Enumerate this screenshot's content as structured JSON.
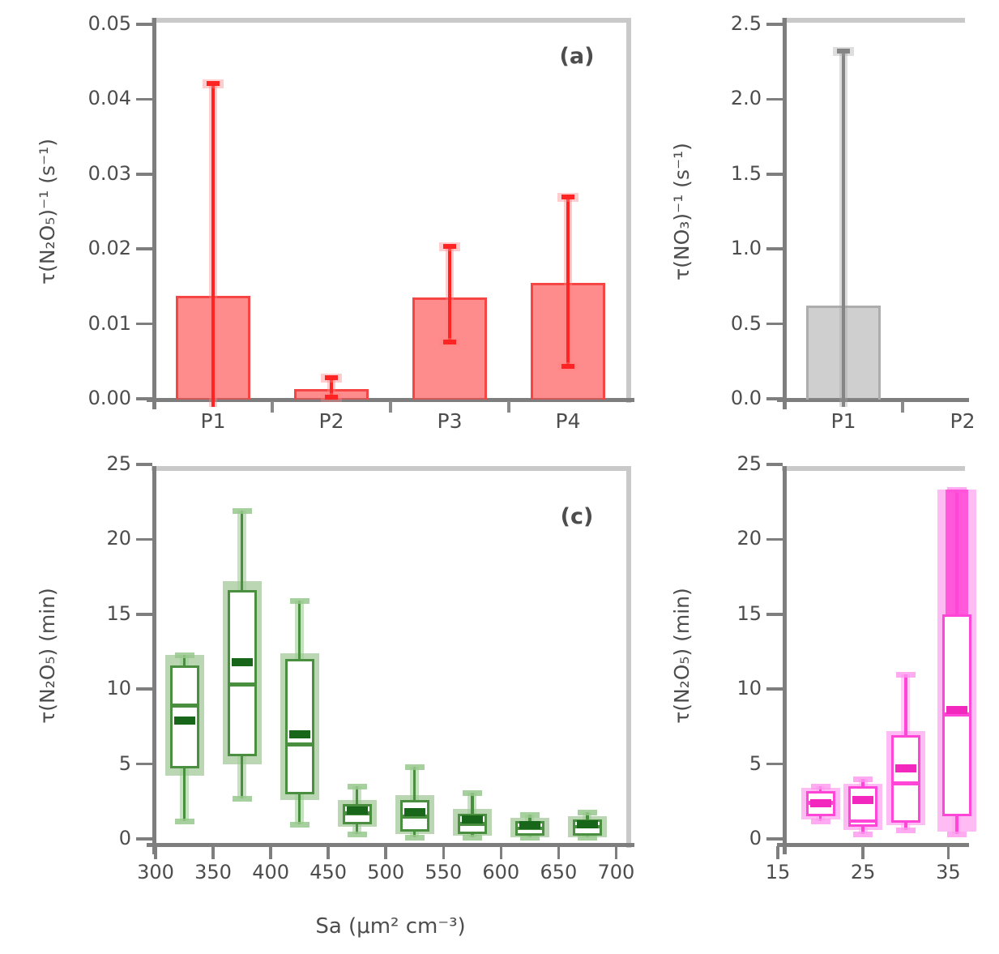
{
  "figure": {
    "description": "2x2 panel scientific figure, right column cropped at image edge",
    "background": "#ffffff",
    "axis_color": "#7e7e7e",
    "frame_color": "#c9c9c9",
    "text_color": "#4d4d4d"
  },
  "chart_data": [
    {
      "panel": "a",
      "type": "bar",
      "position": "top-left",
      "tag": "(a)",
      "ylabel": "τ(N₂O₅)⁻¹ (s⁻¹)",
      "ylim": [
        0,
        0.05
      ],
      "yticks": [
        "0.00",
        "0.01",
        "0.02",
        "0.03",
        "0.04",
        "0.05"
      ],
      "categories": [
        "P1",
        "P2",
        "P3",
        "P4"
      ],
      "values": [
        0.0137,
        0.0013,
        0.0135,
        0.0155
      ],
      "err_lo": [
        null,
        0.0002,
        0.0076,
        0.0043
      ],
      "err_hi": [
        0.0421,
        0.0028,
        0.0203,
        0.027
      ],
      "bar_fill": "rgba(255,70,70,0.62)",
      "bar_edge": "#f64545",
      "err_color": "#ff2424",
      "err_halo": "rgba(255,130,130,0.4)"
    },
    {
      "panel": "b",
      "type": "bar",
      "position": "top-right, cropped by image edge",
      "tag": "",
      "ylabel": "τ(NO₃)⁻¹ (s⁻¹)",
      "ylim": [
        0,
        2.5
      ],
      "yticks": [
        "0.0",
        "0.5",
        "1.0",
        "1.5",
        "2.0",
        "2.5"
      ],
      "categories": [
        "P1",
        "P2"
      ],
      "values": [
        0.62,
        null
      ],
      "err_lo": [
        null,
        null
      ],
      "err_hi": [
        2.32,
        null
      ],
      "bar_fill": "rgba(140,140,140,0.42)",
      "bar_edge": "#adadad",
      "err_color": "#858585",
      "err_halo": "rgba(160,160,160,0.35)"
    },
    {
      "panel": "c",
      "type": "box",
      "position": "bottom-left",
      "tag": "(c)",
      "ylabel": "τ(N₂O₅) (min)",
      "xlabel": "Sa (μm² cm⁻³)",
      "ylim": [
        0,
        25
      ],
      "yticks": [
        "0",
        "5",
        "10",
        "15",
        "20",
        "25"
      ],
      "xticks": [
        300,
        350,
        400,
        450,
        500,
        550,
        600,
        650,
        700
      ],
      "line_color": "#4a8f3f",
      "dark_color": "#176619",
      "shade_color": "rgba(130,180,115,0.55)",
      "halo_color": "rgba(160,205,150,0.6)",
      "cap_color": "rgba(150,200,140,0.85)",
      "boxes": [
        {
          "x": 325,
          "whisker_lo": 1.2,
          "whisker_hi": 12.3,
          "p10": 4.2,
          "p90": 12.3,
          "q1": 4.7,
          "q3": 11.6,
          "median": 8.9,
          "mean": 7.9
        },
        {
          "x": 375,
          "whisker_lo": 2.7,
          "whisker_hi": 21.9,
          "p10": 5.0,
          "p90": 17.2,
          "q1": 5.5,
          "q3": 16.6,
          "median": 10.3,
          "mean": 11.8
        },
        {
          "x": 425,
          "whisker_lo": 1.0,
          "whisker_hi": 15.9,
          "p10": 2.6,
          "p90": 12.4,
          "q1": 3.0,
          "q3": 12.0,
          "median": 6.3,
          "mean": 7.0
        },
        {
          "x": 475,
          "whisker_lo": 0.3,
          "whisker_hi": 3.5,
          "p10": 0.8,
          "p90": 2.6,
          "q1": 1.0,
          "q3": 2.3,
          "median": 1.7,
          "mean": 1.9
        },
        {
          "x": 525,
          "whisker_lo": 0.1,
          "whisker_hi": 4.8,
          "p10": 0.3,
          "p90": 2.9,
          "q1": 0.5,
          "q3": 2.6,
          "median": 1.5,
          "mean": 1.8
        },
        {
          "x": 575,
          "whisker_lo": 0.1,
          "whisker_hi": 3.1,
          "p10": 0.2,
          "p90": 2.0,
          "q1": 0.3,
          "q3": 1.7,
          "median": 1.0,
          "mean": 1.3
        },
        {
          "x": 625,
          "whisker_lo": 0.1,
          "whisker_hi": 1.6,
          "p10": 0.1,
          "p90": 1.4,
          "q1": 0.2,
          "q3": 1.2,
          "median": 0.7,
          "mean": 0.9
        },
        {
          "x": 675,
          "whisker_lo": 0.1,
          "whisker_hi": 1.8,
          "p10": 0.1,
          "p90": 1.5,
          "q1": 0.2,
          "q3": 1.3,
          "median": 0.8,
          "mean": 1.0
        }
      ]
    },
    {
      "panel": "d",
      "type": "box",
      "position": "bottom-right, cropped by image edge",
      "tag": "",
      "ylabel": "τ(N₂O₅) (min)",
      "xlabel": "",
      "ylim": [
        0,
        25
      ],
      "yticks": [
        "0",
        "5",
        "10",
        "15",
        "20",
        "25"
      ],
      "xticks": [
        15,
        25,
        35
      ],
      "line_color": "#ff46d6",
      "dark_color": "#f227bd",
      "shade_color": "rgba(255,120,232,0.5)",
      "halo_color": "rgba(255,165,240,0.55)",
      "cap_color": "rgba(255,150,238,0.8)",
      "boxes": [
        {
          "x": 20,
          "whisker_lo": 1.2,
          "whisker_hi": 3.5,
          "p10": 1.3,
          "p90": 3.4,
          "q1": 1.5,
          "q3": 3.2,
          "median": 2.4,
          "mean": 2.4
        },
        {
          "x": 25,
          "whisker_lo": 0.3,
          "whisker_hi": 4.0,
          "p10": 0.6,
          "p90": 3.7,
          "q1": 0.8,
          "q3": 3.5,
          "median": 1.2,
          "mean": 2.6
        },
        {
          "x": 30,
          "whisker_lo": 0.6,
          "whisker_hi": 11.0,
          "p10": 0.9,
          "p90": 7.2,
          "q1": 1.1,
          "q3": 6.9,
          "median": 3.7,
          "mean": 4.7
        },
        {
          "x": 36,
          "whisker_lo": 0.3,
          "whisker_hi": 23.3,
          "p10": 0.5,
          "p90": 23.3,
          "q1": 1.5,
          "q3": 15.0,
          "median": 8.3,
          "mean": 8.6
        }
      ]
    }
  ]
}
